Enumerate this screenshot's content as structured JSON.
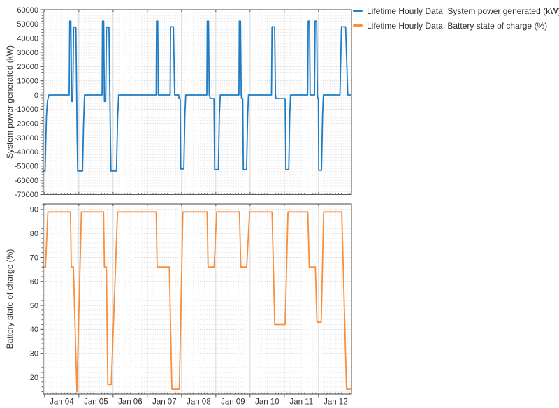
{
  "legend": {
    "items": [
      {
        "label": "Lifetime Hourly Data: System power generated (kW)",
        "color": "#2a7fc0"
      },
      {
        "label": "Lifetime Hourly Data: Battery state of charge (%)",
        "color": "#f98e3b"
      }
    ]
  },
  "chart_data": [
    {
      "type": "line",
      "name": "Lifetime Hourly Data: System power generated (kW)",
      "color": "#1d7cc4",
      "ylabel": "System power generated (kW)",
      "xlabel": "",
      "x_unit": "hours since Jan 01 00:00",
      "xlim_hours": [
        71.1,
        287.1
      ],
      "ylim": [
        -70000,
        60000
      ],
      "yticks": [
        60000,
        50000,
        40000,
        30000,
        20000,
        10000,
        0,
        -10000,
        -20000,
        -30000,
        -40000,
        -50000,
        -60000,
        -70000
      ],
      "y_minor_step": 2000,
      "x_major_ticks_hours": [
        72,
        96,
        120,
        144,
        168,
        192,
        216,
        240,
        264,
        288
      ],
      "x_minor_step_hours": 2,
      "x_grid_minor_step_hours": 4,
      "xtick_labels": [],
      "grid": true,
      "legend_position": "top-right-outside",
      "points": [
        [
          71,
          -53500
        ],
        [
          72.3,
          -53500
        ],
        [
          73.3,
          -15000
        ],
        [
          74,
          -4000
        ],
        [
          75,
          0
        ],
        [
          89.2,
          0
        ],
        [
          89.6,
          52000
        ],
        [
          90.4,
          52000
        ],
        [
          90.9,
          -4500
        ],
        [
          91.7,
          -4500
        ],
        [
          92.3,
          47800
        ],
        [
          93.9,
          47800
        ],
        [
          94.8,
          -30000
        ],
        [
          95.2,
          -53500
        ],
        [
          98.6,
          -53500
        ],
        [
          99.3,
          -20000
        ],
        [
          100,
          0
        ],
        [
          112.3,
          0
        ],
        [
          112.6,
          52000
        ],
        [
          113.4,
          52000
        ],
        [
          113.9,
          -4500
        ],
        [
          114.8,
          -4500
        ],
        [
          115.4,
          47800
        ],
        [
          117.1,
          47800
        ],
        [
          118.1,
          -30000
        ],
        [
          118.5,
          -53500
        ],
        [
          122.4,
          -53500
        ],
        [
          123.2,
          -15000
        ],
        [
          123.9,
          0
        ],
        [
          150.2,
          0
        ],
        [
          150.5,
          52000
        ],
        [
          151.3,
          52000
        ],
        [
          151.7,
          0
        ],
        [
          160,
          0
        ],
        [
          160.3,
          48000
        ],
        [
          162.3,
          48000
        ],
        [
          163.2,
          0
        ],
        [
          166,
          0
        ],
        [
          166.2,
          -2500
        ],
        [
          167,
          -2500
        ],
        [
          167.4,
          -52000
        ],
        [
          169.6,
          -52000
        ],
        [
          170.3,
          -15000
        ],
        [
          170.9,
          0
        ],
        [
          185.7,
          0
        ],
        [
          186,
          52000
        ],
        [
          186.9,
          52000
        ],
        [
          187.4,
          0
        ],
        [
          188.2,
          -2500
        ],
        [
          190.7,
          -2500
        ],
        [
          191.2,
          -52500
        ],
        [
          193.8,
          -52500
        ],
        [
          194.5,
          -15000
        ],
        [
          195.1,
          0
        ],
        [
          208.2,
          0
        ],
        [
          208.5,
          52000
        ],
        [
          209.3,
          52000
        ],
        [
          209.8,
          0
        ],
        [
          210.1,
          -2500
        ],
        [
          210.9,
          -2500
        ],
        [
          211.3,
          -52500
        ],
        [
          213.6,
          -52500
        ],
        [
          214.3,
          -15000
        ],
        [
          214.9,
          0
        ],
        [
          231,
          0
        ],
        [
          231.4,
          48000
        ],
        [
          233.2,
          48000
        ],
        [
          233.8,
          0
        ],
        [
          234.2,
          -2500
        ],
        [
          240.6,
          -2500
        ],
        [
          241.1,
          -52500
        ],
        [
          243.1,
          -52500
        ],
        [
          243.8,
          -15000
        ],
        [
          244.4,
          0
        ],
        [
          256.4,
          0
        ],
        [
          256.8,
          52000
        ],
        [
          257.7,
          52000
        ],
        [
          258.1,
          0
        ],
        [
          261.2,
          0
        ],
        [
          261.6,
          52000
        ],
        [
          262.7,
          52000
        ],
        [
          263.2,
          0
        ],
        [
          263.5,
          -2500
        ],
        [
          263.9,
          -2500
        ],
        [
          264.2,
          -53000
        ],
        [
          266.1,
          -53000
        ],
        [
          266.8,
          -15000
        ],
        [
          267.4,
          0
        ],
        [
          279,
          0
        ],
        [
          280.1,
          48000
        ],
        [
          283,
          48000
        ],
        [
          284.5,
          0
        ],
        [
          287.5,
          0
        ]
      ]
    },
    {
      "type": "line",
      "name": "Lifetime Hourly Data: Battery state of charge (%)",
      "color": "#f98e3b",
      "ylabel": "Battery state of charge (%)",
      "xlabel": "",
      "x_unit": "hours since Jan 01 00:00",
      "xlim_hours": [
        71.1,
        287.1
      ],
      "ylim": [
        13,
        92.3
      ],
      "yticks": [
        90,
        80,
        70,
        60,
        50,
        40,
        30,
        20
      ],
      "y_minor_step": 2,
      "x_major_ticks_hours": [
        72,
        96,
        120,
        144,
        168,
        192,
        216,
        240,
        264,
        288
      ],
      "x_minor_step_hours": 2,
      "x_grid_minor_step_hours": 4,
      "xtick_labels": [
        "Jan 04",
        "Jan 05",
        "Jan 06",
        "Jan 07",
        "Jan 08",
        "Jan 09",
        "Jan 10",
        "Jan 11",
        "Jan 12"
      ],
      "grid": true,
      "legend_position": "top-right-outside",
      "points": [
        [
          71,
          66
        ],
        [
          72.6,
          66
        ],
        [
          74.3,
          89
        ],
        [
          90.1,
          89
        ],
        [
          90.7,
          66
        ],
        [
          92.2,
          66
        ],
        [
          94.6,
          14
        ],
        [
          97.8,
          89
        ],
        [
          113.3,
          89
        ],
        [
          113.9,
          66
        ],
        [
          115.3,
          66
        ],
        [
          116.3,
          17
        ],
        [
          118.7,
          17
        ],
        [
          123.1,
          89
        ],
        [
          150.2,
          89
        ],
        [
          150.9,
          66
        ],
        [
          159.4,
          66
        ],
        [
          161.2,
          15
        ],
        [
          166.4,
          15
        ],
        [
          168.9,
          89
        ],
        [
          185.9,
          89
        ],
        [
          186.6,
          66
        ],
        [
          190.8,
          66
        ],
        [
          192.6,
          89
        ],
        [
          208.6,
          89
        ],
        [
          209.5,
          66
        ],
        [
          213.7,
          66
        ],
        [
          215.7,
          89
        ],
        [
          231.4,
          89
        ],
        [
          233.3,
          42
        ],
        [
          240.6,
          42
        ],
        [
          242.6,
          89
        ],
        [
          256.5,
          89
        ],
        [
          257.5,
          66
        ],
        [
          261.8,
          66
        ],
        [
          262.9,
          43
        ],
        [
          265.9,
          43
        ],
        [
          267.6,
          89
        ],
        [
          280.3,
          89
        ],
        [
          283.6,
          15
        ],
        [
          287.5,
          15
        ]
      ]
    }
  ]
}
